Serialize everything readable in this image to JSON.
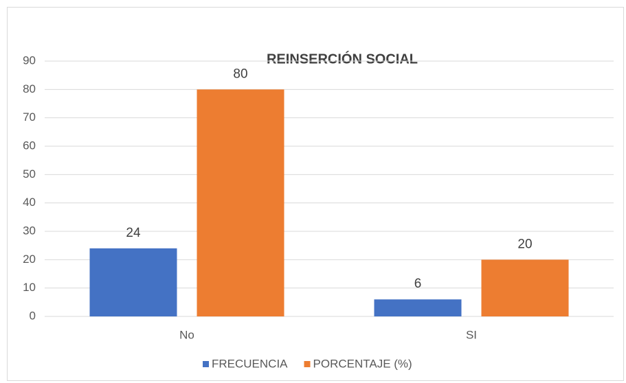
{
  "chart_data": {
    "type": "bar",
    "title": "REINSERCIÓN SOCIAL",
    "categories": [
      "No",
      "SI"
    ],
    "series": [
      {
        "name": "FRECUENCIA",
        "color": "#4472c4",
        "values": [
          24,
          6
        ]
      },
      {
        "name": "PORCENTAJE (%)",
        "color": "#ed7d31",
        "values": [
          80,
          20
        ]
      }
    ],
    "ylim": [
      0,
      90
    ],
    "yticks": [
      0,
      10,
      20,
      30,
      40,
      50,
      60,
      70,
      80,
      90
    ],
    "grid": true,
    "legend": "bottom"
  }
}
